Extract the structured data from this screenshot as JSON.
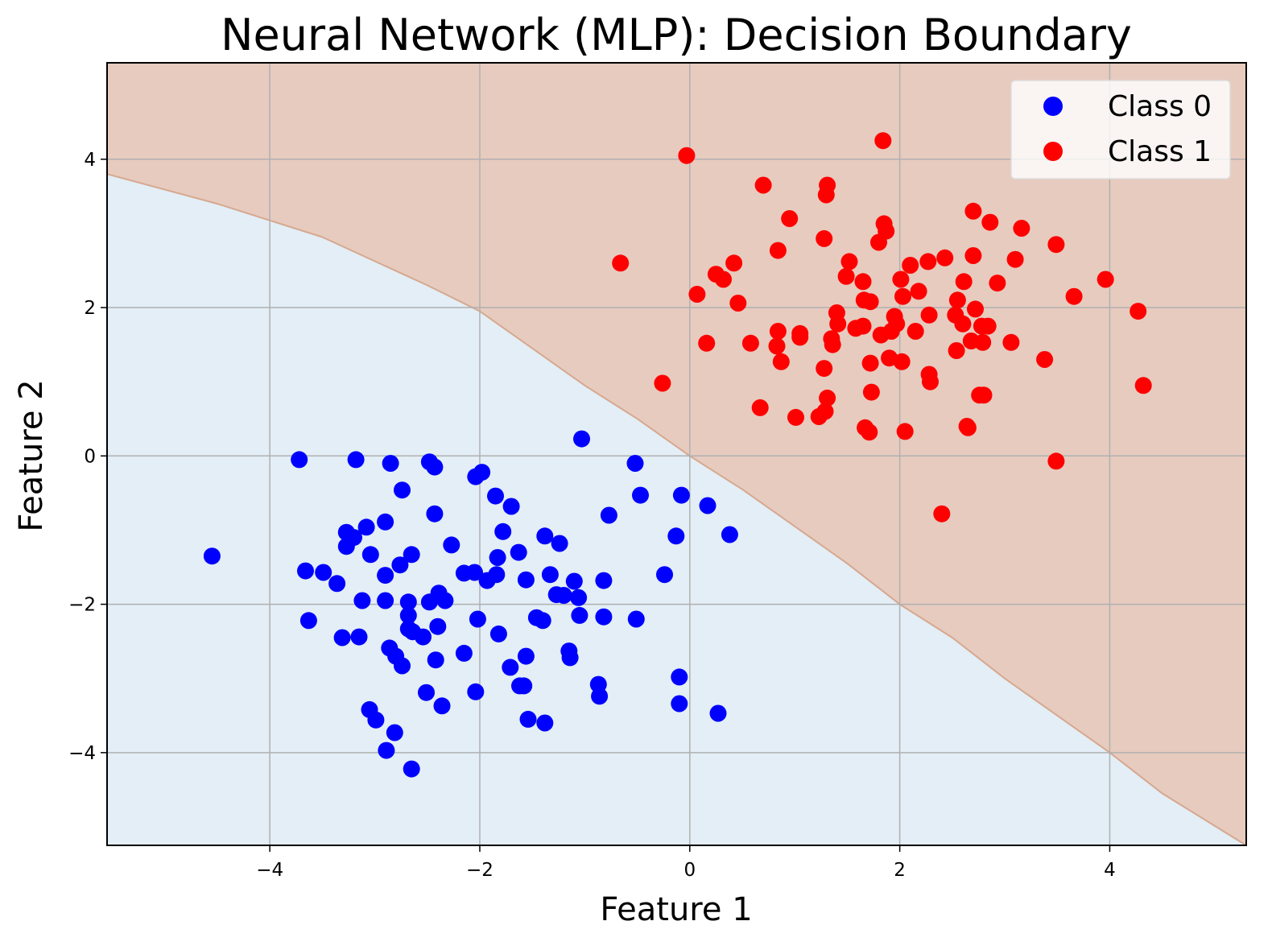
{
  "chart_data": {
    "type": "scatter",
    "title": "Neural Network (MLP): Decision Boundary",
    "xlabel": "Feature 1",
    "ylabel": "Feature 2",
    "xlim": [
      -5.55,
      5.3
    ],
    "ylim": [
      -5.25,
      5.3
    ],
    "xticks": [
      -4,
      -2,
      0,
      2,
      4
    ],
    "yticks": [
      -4,
      -2,
      0,
      2,
      4
    ],
    "grid": true,
    "legend_position": "top-right",
    "regions": {
      "class_0_color": "#e3eef6",
      "class_1_color": "#e7cbbf",
      "boundary": [
        [
          -5.55,
          3.8
        ],
        [
          -4.5,
          3.4
        ],
        [
          -3.5,
          2.95
        ],
        [
          -2.5,
          2.3
        ],
        [
          -2,
          1.95
        ],
        [
          -1.5,
          1.45
        ],
        [
          -1,
          0.95
        ],
        [
          -0.5,
          0.5
        ],
        [
          0,
          0
        ],
        [
          0.5,
          -0.45
        ],
        [
          1,
          -0.95
        ],
        [
          1.5,
          -1.45
        ],
        [
          2,
          -2.0
        ],
        [
          2.5,
          -2.45
        ],
        [
          3,
          -3.0
        ],
        [
          3.5,
          -3.5
        ],
        [
          4,
          -4.0
        ],
        [
          4.5,
          -4.55
        ],
        [
          5.3,
          -5.25
        ]
      ]
    },
    "series": [
      {
        "name": "Class 0",
        "color": "#0000ff",
        "points": [
          [
            -4.55,
            -1.35
          ],
          [
            -3.72,
            -0.05
          ],
          [
            -3.18,
            -0.05
          ],
          [
            -2.85,
            -0.1
          ],
          [
            -2.48,
            -0.08
          ],
          [
            -2.43,
            -0.15
          ],
          [
            -1.03,
            0.23
          ],
          [
            -0.52,
            -0.1
          ],
          [
            -2.74,
            -0.46
          ],
          [
            -2.04,
            -0.28
          ],
          [
            -1.98,
            -0.22
          ],
          [
            -1.85,
            -0.54
          ],
          [
            -1.7,
            -0.68
          ],
          [
            -0.47,
            -0.53
          ],
          [
            -0.08,
            -0.53
          ],
          [
            0.17,
            -0.67
          ],
          [
            -2.43,
            -0.78
          ],
          [
            -0.77,
            -0.8
          ],
          [
            -2.9,
            -0.89
          ],
          [
            -3.27,
            -1.03
          ],
          [
            -3.08,
            -0.96
          ],
          [
            -3.2,
            -1.1
          ],
          [
            -3.27,
            -1.22
          ],
          [
            -1.78,
            -1.02
          ],
          [
            -1.38,
            -1.08
          ],
          [
            -1.24,
            -1.18
          ],
          [
            -0.13,
            -1.08
          ],
          [
            0.38,
            -1.06
          ],
          [
            -3.04,
            -1.33
          ],
          [
            -2.65,
            -1.33
          ],
          [
            -2.76,
            -1.47
          ],
          [
            -2.27,
            -1.2
          ],
          [
            -1.63,
            -1.3
          ],
          [
            -1.83,
            -1.37
          ],
          [
            -3.66,
            -1.55
          ],
          [
            -3.49,
            -1.57
          ],
          [
            -3.36,
            -1.72
          ],
          [
            -2.9,
            -1.61
          ],
          [
            -2.15,
            -1.58
          ],
          [
            -2.05,
            -1.57
          ],
          [
            -1.84,
            -1.6
          ],
          [
            -1.93,
            -1.68
          ],
          [
            -1.56,
            -1.67
          ],
          [
            -1.33,
            -1.6
          ],
          [
            -1.1,
            -1.69
          ],
          [
            -0.82,
            -1.68
          ],
          [
            -0.24,
            -1.6
          ],
          [
            -3.12,
            -1.95
          ],
          [
            -2.9,
            -1.95
          ],
          [
            -2.68,
            -1.97
          ],
          [
            -2.48,
            -1.97
          ],
          [
            -2.39,
            -1.85
          ],
          [
            -2.33,
            -1.95
          ],
          [
            -1.27,
            -1.87
          ],
          [
            -1.2,
            -1.88
          ],
          [
            -1.06,
            -1.91
          ],
          [
            -3.63,
            -2.22
          ],
          [
            -2.68,
            -2.15
          ],
          [
            -2.02,
            -2.2
          ],
          [
            -1.46,
            -2.18
          ],
          [
            -1.4,
            -2.22
          ],
          [
            -1.05,
            -2.15
          ],
          [
            -0.82,
            -2.17
          ],
          [
            -0.51,
            -2.2
          ],
          [
            -2.4,
            -2.3
          ],
          [
            -2.68,
            -2.33
          ],
          [
            -2.64,
            -2.37
          ],
          [
            -3.31,
            -2.45
          ],
          [
            -3.15,
            -2.44
          ],
          [
            -2.54,
            -2.44
          ],
          [
            -1.82,
            -2.4
          ],
          [
            -2.86,
            -2.59
          ],
          [
            -2.8,
            -2.7
          ],
          [
            -2.15,
            -2.66
          ],
          [
            -1.15,
            -2.63
          ],
          [
            -1.56,
            -2.7
          ],
          [
            -2.74,
            -2.83
          ],
          [
            -2.42,
            -2.75
          ],
          [
            -1.71,
            -2.85
          ],
          [
            -1.14,
            -2.72
          ],
          [
            -0.1,
            -2.98
          ],
          [
            -1.62,
            -3.1
          ],
          [
            -1.58,
            -3.1
          ],
          [
            -0.87,
            -3.08
          ],
          [
            -2.51,
            -3.19
          ],
          [
            -2.04,
            -3.18
          ],
          [
            -0.86,
            -3.24
          ],
          [
            -3.05,
            -3.42
          ],
          [
            -2.36,
            -3.37
          ],
          [
            -0.1,
            -3.34
          ],
          [
            0.27,
            -3.47
          ],
          [
            -2.99,
            -3.56
          ],
          [
            -1.54,
            -3.55
          ],
          [
            -1.38,
            -3.6
          ],
          [
            -2.81,
            -3.73
          ],
          [
            -2.89,
            -3.97
          ],
          [
            -2.65,
            -4.22
          ]
        ]
      },
      {
        "name": "Class 1",
        "color": "#ff0000",
        "points": [
          [
            -0.03,
            4.05
          ],
          [
            1.84,
            4.25
          ],
          [
            0.7,
            3.65
          ],
          [
            1.31,
            3.65
          ],
          [
            1.3,
            3.52
          ],
          [
            0.95,
            3.2
          ],
          [
            1.85,
            3.13
          ],
          [
            1.87,
            3.03
          ],
          [
            2.7,
            3.3
          ],
          [
            2.86,
            3.15
          ],
          [
            3.16,
            3.07
          ],
          [
            1.8,
            2.88
          ],
          [
            1.28,
            2.93
          ],
          [
            0.84,
            2.77
          ],
          [
            3.49,
            2.85
          ],
          [
            -0.66,
            2.6
          ],
          [
            0.42,
            2.6
          ],
          [
            1.52,
            2.62
          ],
          [
            2.1,
            2.57
          ],
          [
            2.27,
            2.62
          ],
          [
            2.43,
            2.67
          ],
          [
            2.7,
            2.7
          ],
          [
            3.1,
            2.65
          ],
          [
            0.25,
            2.45
          ],
          [
            0.32,
            2.38
          ],
          [
            1.49,
            2.42
          ],
          [
            1.65,
            2.35
          ],
          [
            2.01,
            2.38
          ],
          [
            2.61,
            2.35
          ],
          [
            2.93,
            2.33
          ],
          [
            3.96,
            2.38
          ],
          [
            0.07,
            2.18
          ],
          [
            0.46,
            2.06
          ],
          [
            1.66,
            2.1
          ],
          [
            1.72,
            2.08
          ],
          [
            2.03,
            2.15
          ],
          [
            2.18,
            2.22
          ],
          [
            2.55,
            2.1
          ],
          [
            3.66,
            2.15
          ],
          [
            1.4,
            1.93
          ],
          [
            1.95,
            1.88
          ],
          [
            2.28,
            1.9
          ],
          [
            2.53,
            1.9
          ],
          [
            2.72,
            1.98
          ],
          [
            4.27,
            1.95
          ],
          [
            1.41,
            1.78
          ],
          [
            1.58,
            1.72
          ],
          [
            1.65,
            1.75
          ],
          [
            1.97,
            1.78
          ],
          [
            2.6,
            1.78
          ],
          [
            2.78,
            1.75
          ],
          [
            2.84,
            1.75
          ],
          [
            0.84,
            1.68
          ],
          [
            1.05,
            1.65
          ],
          [
            1.82,
            1.63
          ],
          [
            1.92,
            1.68
          ],
          [
            2.15,
            1.68
          ],
          [
            0.16,
            1.52
          ],
          [
            0.58,
            1.52
          ],
          [
            0.83,
            1.48
          ],
          [
            1.05,
            1.6
          ],
          [
            1.35,
            1.58
          ],
          [
            1.36,
            1.5
          ],
          [
            2.68,
            1.55
          ],
          [
            2.79,
            1.53
          ],
          [
            3.06,
            1.53
          ],
          [
            1.9,
            1.32
          ],
          [
            2.02,
            1.27
          ],
          [
            2.54,
            1.42
          ],
          [
            3.38,
            1.3
          ],
          [
            0.87,
            1.27
          ],
          [
            1.28,
            1.18
          ],
          [
            1.72,
            1.25
          ],
          [
            2.28,
            1.1
          ],
          [
            2.29,
            1.0
          ],
          [
            -0.26,
            0.98
          ],
          [
            1.73,
            0.86
          ],
          [
            1.31,
            0.78
          ],
          [
            2.76,
            0.82
          ],
          [
            2.8,
            0.82
          ],
          [
            4.32,
            0.95
          ],
          [
            0.67,
            0.65
          ],
          [
            1.01,
            0.52
          ],
          [
            1.23,
            0.53
          ],
          [
            1.29,
            0.6
          ],
          [
            1.67,
            0.38
          ],
          [
            1.71,
            0.32
          ],
          [
            2.64,
            0.4
          ],
          [
            2.65,
            0.38
          ],
          [
            2.05,
            0.33
          ],
          [
            3.49,
            -0.07
          ],
          [
            2.4,
            -0.78
          ]
        ]
      }
    ]
  }
}
